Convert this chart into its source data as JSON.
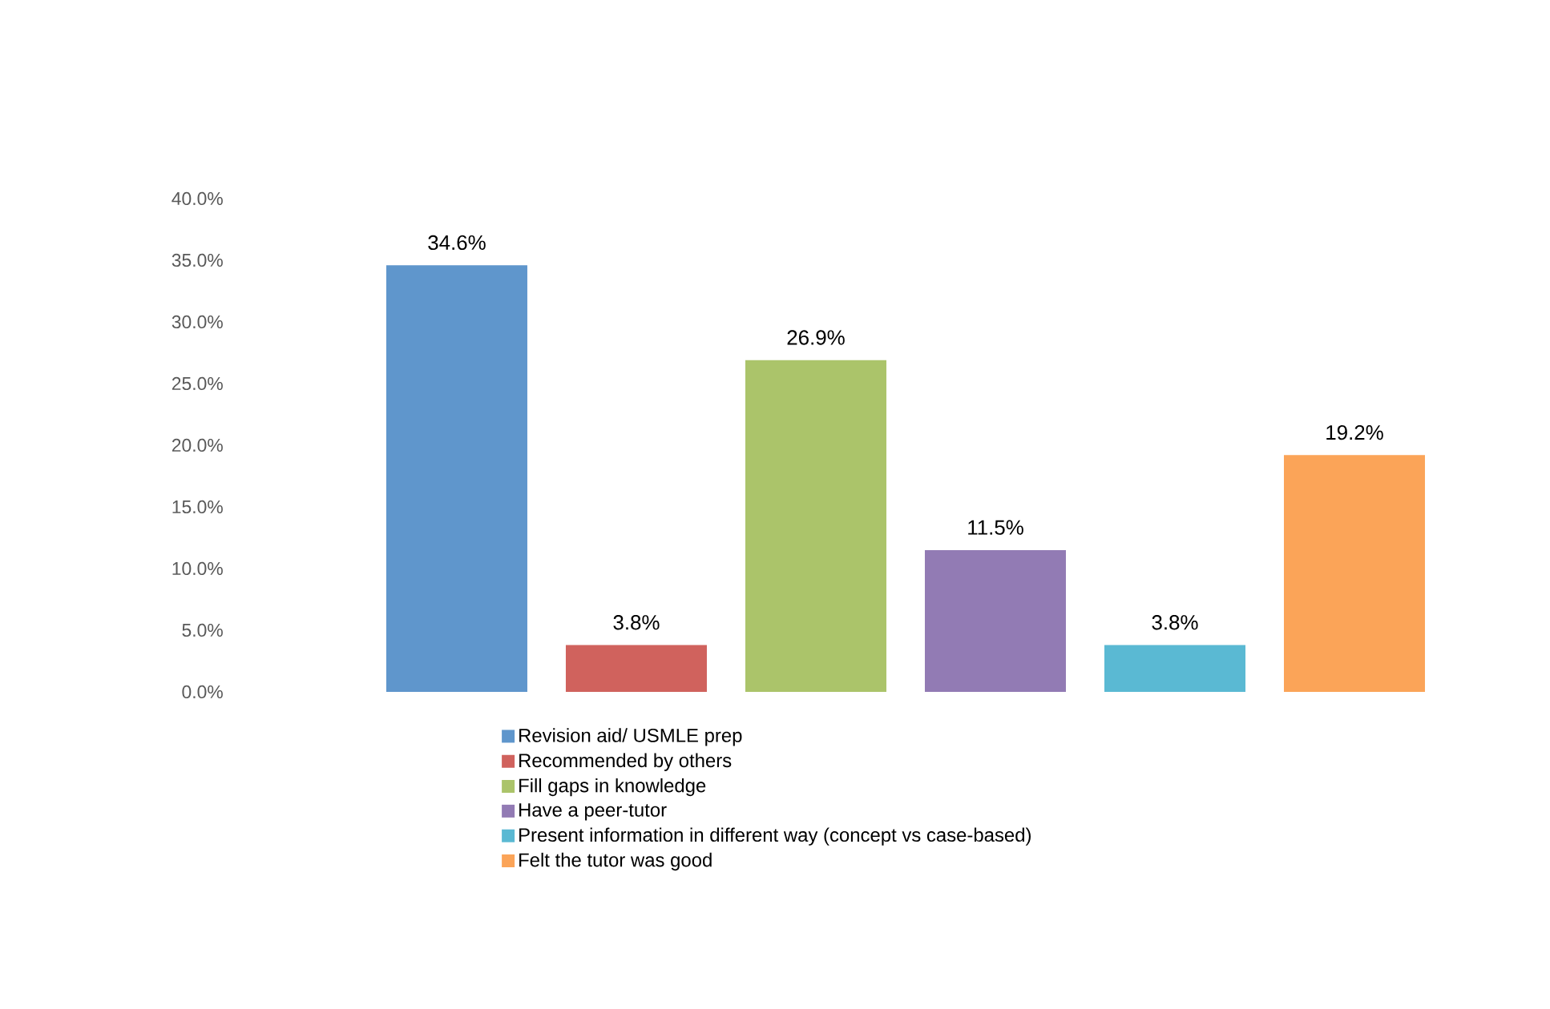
{
  "chart_data": {
    "type": "bar",
    "categories": [
      null
    ],
    "series": [
      {
        "name": "Revision aid/ USMLE prep",
        "color": "#5f96cc",
        "values": [
          34.6
        ],
        "value_labels": [
          "34.6%"
        ]
      },
      {
        "name": "Recommended by others",
        "color": "#d0625d",
        "values": [
          3.8
        ],
        "value_labels": [
          "3.8%"
        ]
      },
      {
        "name": "Fill gaps in knowledge",
        "color": "#abc46a",
        "values": [
          26.9
        ],
        "value_labels": [
          "26.9%"
        ]
      },
      {
        "name": "Have a peer-tutor",
        "color": "#927bb4",
        "values": [
          11.5
        ],
        "value_labels": [
          "11.5%"
        ]
      },
      {
        "name": "Present information in different way (concept vs case-based)",
        "color": "#5ab9d3",
        "values": [
          3.8
        ],
        "value_labels": [
          "3.8%"
        ]
      },
      {
        "name": "Felt the tutor was good",
        "color": "#fba458",
        "values": [
          19.2
        ],
        "value_labels": [
          "19.2%"
        ]
      }
    ],
    "ylim": [
      0,
      40
    ],
    "yticks": [
      {
        "value": 0,
        "label": "0.0%"
      },
      {
        "value": 5,
        "label": "5.0%"
      },
      {
        "value": 10,
        "label": "10.0%"
      },
      {
        "value": 15,
        "label": "15.0%"
      },
      {
        "value": 20,
        "label": "20.0%"
      },
      {
        "value": 25,
        "label": "25.0%"
      },
      {
        "value": 30,
        "label": "30.0%"
      },
      {
        "value": 35,
        "label": "35.0%"
      },
      {
        "value": 40,
        "label": "40.0%"
      }
    ],
    "legend": "bottom"
  }
}
